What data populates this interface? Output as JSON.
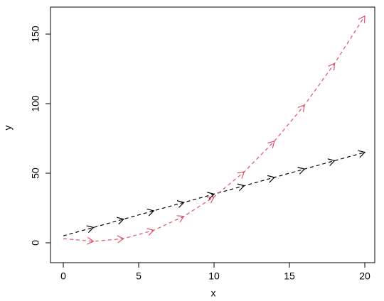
{
  "chart_data": {
    "type": "line",
    "x_label": "x",
    "y_label": "y",
    "x": [
      0,
      2,
      4,
      6,
      8,
      10,
      12,
      14,
      16,
      18,
      20
    ],
    "series": [
      {
        "name": "black",
        "color": "#000000",
        "values": [
          5,
          11,
          17,
          23,
          29,
          35,
          41,
          47,
          53,
          59,
          65
        ]
      },
      {
        "name": "red",
        "color": "#df536b",
        "values": [
          3,
          1,
          3,
          9,
          19,
          33,
          51,
          73,
          99,
          129,
          163
        ]
      }
    ],
    "xlim": [
      -0.85,
      20.66
    ],
    "ylim": [
      -14.3,
      169.4
    ],
    "xticks": [
      0,
      5,
      10,
      15,
      20
    ],
    "yticks": [
      0,
      50,
      100,
      150
    ]
  }
}
